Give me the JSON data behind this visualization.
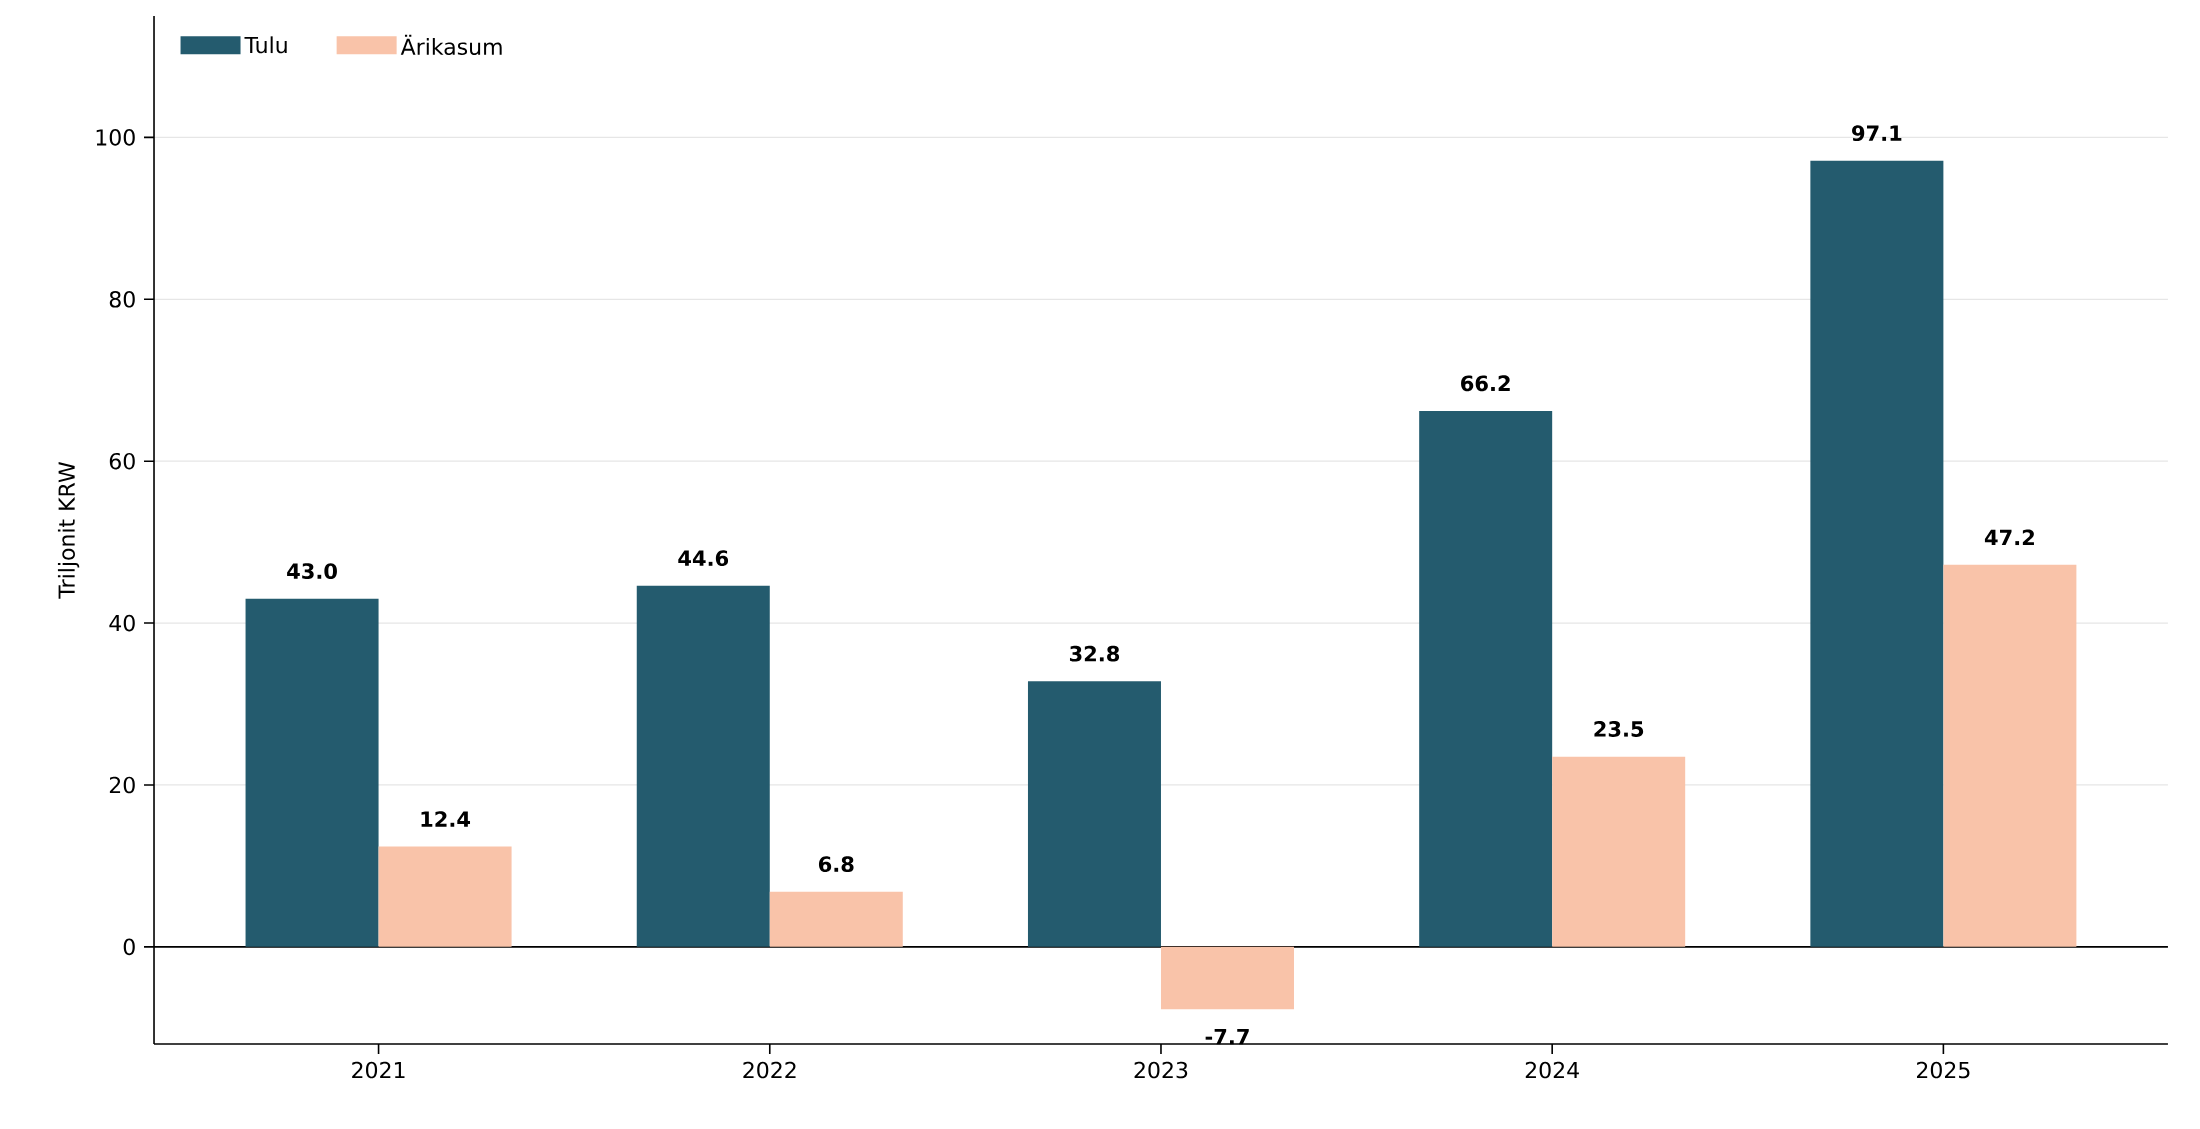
{
  "chart_data": {
    "type": "bar",
    "ylabel": "Triljonit KRW",
    "categories": [
      "2021",
      "2022",
      "2023",
      "2024",
      "2025"
    ],
    "series": [
      {
        "name": "Tulu",
        "color": "#245b6e",
        "values": [
          43.0,
          44.6,
          32.8,
          66.2,
          97.1
        ],
        "value_labels": [
          "43.0",
          "44.6",
          "32.8",
          "66.2",
          "97.1"
        ]
      },
      {
        "name": "Ärikasum",
        "color": "#f9c3a9",
        "values": [
          12.4,
          6.8,
          -7.7,
          23.5,
          47.2
        ],
        "value_labels": [
          "12.4",
          "6.8",
          "-7.7",
          "23.5",
          "47.2"
        ]
      }
    ],
    "ylim": [
      -12,
      115
    ],
    "yticks": [
      0,
      20,
      40,
      60,
      80,
      100
    ],
    "grid": "y",
    "legend": "top left",
    "ref_lines": [
      {
        "axis": "y",
        "value": 0,
        "color": "#000000"
      }
    ]
  }
}
